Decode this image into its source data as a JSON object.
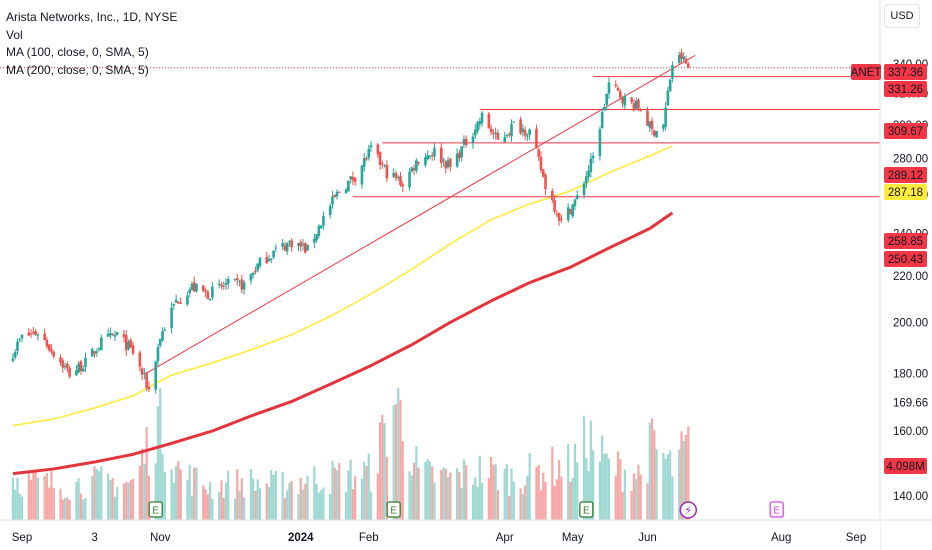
{
  "header": {
    "title": "Arista Networks, Inc., 1D, NYSE",
    "indicators": [
      "Vol",
      "MA (100, close, 0, SMA, 5)",
      "MA (200, close, 0, SMA, 5)"
    ],
    "currency": "USD"
  },
  "chart_data": {
    "type": "candlestick",
    "ticker": "ANET",
    "y_axis": {
      "ticks": [
        140.0,
        160.0,
        169.66,
        180.0,
        200.0,
        220.0,
        240.0,
        260.0,
        280.0,
        300.0,
        320.0,
        340.0
      ],
      "tick_labels": [
        "140.00",
        "160.00",
        "169.66",
        "180.00",
        "200.00",
        "220.00",
        "240.00",
        "260.00",
        "280.00",
        "300.00",
        "320.00",
        "340.00"
      ],
      "scale": "log"
    },
    "x_axis": {
      "tick_labels": [
        {
          "label": "Sep",
          "date": "2023-09-01"
        },
        {
          "label": "3",
          "date": "2023-10-03"
        },
        {
          "label": "Nov",
          "date": "2023-11-01"
        },
        {
          "label": "2024",
          "date": "2024-01-02",
          "bold": true
        },
        {
          "label": "Feb",
          "date": "2024-02-01"
        },
        {
          "label": "Apr",
          "date": "2024-04-01"
        },
        {
          "label": "May",
          "date": "2024-05-01"
        },
        {
          "label": "Jun",
          "date": "2024-06-03"
        },
        {
          "label": "Aug",
          "date": "2024-08-01"
        },
        {
          "label": "Sep",
          "date": "2024-09-03"
        }
      ]
    },
    "price_labels": [
      {
        "text": "ANET",
        "value": 337.36,
        "color": "#f23645"
      },
      {
        "text": "337.36",
        "value": 337.36,
        "color": "#f23645"
      },
      {
        "text": "331.26",
        "value": 331.26,
        "color": "#f23645"
      },
      {
        "text": "309.67",
        "value": 309.67,
        "color": "#f23645"
      },
      {
        "text": "289.12",
        "value": 289.12,
        "color": "#f23645"
      },
      {
        "text": "287.18",
        "value": 287.18,
        "color": "#ffeb3b"
      },
      {
        "text": "258.85",
        "value": 258.85,
        "color": "#f23645"
      },
      {
        "text": "250.43",
        "value": 250.43,
        "color": "#f23645"
      },
      {
        "text": "4.098M",
        "value": null,
        "color": "#f23645"
      }
    ],
    "horizontal_levels": [
      {
        "value": 331.26,
        "from": "2024-05-10"
      },
      {
        "value": 309.67,
        "from": "2024-03-21"
      },
      {
        "value": 289.12,
        "from": "2024-02-07"
      },
      {
        "value": 258.85,
        "from": "2024-01-25"
      }
    ],
    "trendline": {
      "from": {
        "date": "2023-10-26",
        "value": 180.2
      },
      "to": {
        "date": "2024-06-24",
        "value": 346.0
      }
    },
    "ma100": [
      [
        "2023-08-28",
        161.8
      ],
      [
        "2023-09-15",
        164.0
      ],
      [
        "2023-10-02",
        167.5
      ],
      [
        "2023-10-20",
        172.0
      ],
      [
        "2023-11-06",
        179.5
      ],
      [
        "2023-11-24",
        184.0
      ],
      [
        "2023-12-11",
        189.0
      ],
      [
        "2023-12-29",
        195.0
      ],
      [
        "2024-01-16",
        203.0
      ],
      [
        "2024-02-02",
        212.0
      ],
      [
        "2024-02-20",
        223.0
      ],
      [
        "2024-03-08",
        235.0
      ],
      [
        "2024-03-26",
        247.0
      ],
      [
        "2024-04-12",
        255.0
      ],
      [
        "2024-04-30",
        262.0
      ],
      [
        "2024-05-17",
        272.0
      ],
      [
        "2024-06-04",
        281.5
      ],
      [
        "2024-06-14",
        287.18
      ]
    ],
    "ma200": [
      [
        "2023-08-28",
        146.6
      ],
      [
        "2023-09-15",
        148.0
      ],
      [
        "2023-10-02",
        150.0
      ],
      [
        "2023-10-20",
        152.5
      ],
      [
        "2023-11-06",
        156.0
      ],
      [
        "2023-11-24",
        160.0
      ],
      [
        "2023-12-11",
        165.0
      ],
      [
        "2023-12-29",
        170.0
      ],
      [
        "2024-01-16",
        176.5
      ],
      [
        "2024-02-02",
        183.0
      ],
      [
        "2024-02-20",
        191.0
      ],
      [
        "2024-03-08",
        200.0
      ],
      [
        "2024-03-26",
        209.0
      ],
      [
        "2024-04-12",
        217.0
      ],
      [
        "2024-04-30",
        224.0
      ],
      [
        "2024-05-17",
        233.0
      ],
      [
        "2024-06-04",
        242.5
      ],
      [
        "2024-06-14",
        250.43
      ]
    ],
    "price_keypoints": [
      [
        "2023-08-28",
        188
      ],
      [
        "2023-09-01",
        194
      ],
      [
        "2023-09-08",
        196
      ],
      [
        "2023-09-15",
        188
      ],
      [
        "2023-09-22",
        180
      ],
      [
        "2023-09-29",
        184
      ],
      [
        "2023-10-06",
        192
      ],
      [
        "2023-10-13",
        195
      ],
      [
        "2023-10-20",
        188
      ],
      [
        "2023-10-27",
        174
      ],
      [
        "2023-11-01",
        194
      ],
      [
        "2023-11-08",
        209
      ],
      [
        "2023-11-15",
        215
      ],
      [
        "2023-11-22",
        212
      ],
      [
        "2023-11-30",
        216
      ],
      [
        "2023-12-08",
        216
      ],
      [
        "2023-12-15",
        226
      ],
      [
        "2023-12-22",
        232
      ],
      [
        "2023-12-29",
        236
      ],
      [
        "2024-01-05",
        232
      ],
      [
        "2024-01-12",
        248
      ],
      [
        "2024-01-19",
        262
      ],
      [
        "2024-01-26",
        270
      ],
      [
        "2024-02-02",
        285
      ],
      [
        "2024-02-09",
        272
      ],
      [
        "2024-02-16",
        266
      ],
      [
        "2024-02-23",
        280
      ],
      [
        "2024-03-01",
        284
      ],
      [
        "2024-03-08",
        275
      ],
      [
        "2024-03-15",
        290
      ],
      [
        "2024-03-22",
        305
      ],
      [
        "2024-03-29",
        290
      ],
      [
        "2024-04-05",
        300
      ],
      [
        "2024-04-12",
        296
      ],
      [
        "2024-04-19",
        265
      ],
      [
        "2024-04-26",
        246
      ],
      [
        "2024-05-03",
        258
      ],
      [
        "2024-05-10",
        280
      ],
      [
        "2024-05-17",
        326
      ],
      [
        "2024-05-24",
        316
      ],
      [
        "2024-05-31",
        310
      ],
      [
        "2024-06-05",
        296
      ],
      [
        "2024-06-10",
        300
      ],
      [
        "2024-06-14",
        340
      ],
      [
        "2024-06-18",
        345
      ],
      [
        "2024-06-21",
        337.36
      ]
    ],
    "volume_keypoints": [
      [
        "2023-08-28",
        2.4
      ],
      [
        "2023-09-08",
        2.1
      ],
      [
        "2023-09-22",
        2.0
      ],
      [
        "2023-10-06",
        2.2
      ],
      [
        "2023-10-20",
        2.1
      ],
      [
        "2023-10-31",
        5.5
      ],
      [
        "2023-11-10",
        2.6
      ],
      [
        "2023-11-24",
        1.9
      ],
      [
        "2023-12-08",
        2.2
      ],
      [
        "2023-12-22",
        2.0
      ],
      [
        "2024-01-05",
        2.3
      ],
      [
        "2024-01-19",
        2.5
      ],
      [
        "2024-02-02",
        2.7
      ],
      [
        "2024-02-13",
        6.7
      ],
      [
        "2024-02-23",
        2.6
      ],
      [
        "2024-03-08",
        2.4
      ],
      [
        "2024-03-22",
        2.8
      ],
      [
        "2024-04-05",
        2.4
      ],
      [
        "2024-04-19",
        2.9
      ],
      [
        "2024-05-01",
        3.1
      ],
      [
        "2024-05-08",
        4.5
      ],
      [
        "2024-05-17",
        3.0
      ],
      [
        "2024-05-31",
        2.6
      ],
      [
        "2024-06-05",
        4.2
      ],
      [
        "2024-06-14",
        2.9
      ],
      [
        "2024-06-21",
        4.098
      ]
    ],
    "event_markers": [
      {
        "symbol": "E",
        "date": "2023-10-30",
        "type": "earnings"
      },
      {
        "symbol": "E",
        "date": "2024-02-12",
        "type": "earnings"
      },
      {
        "symbol": "E",
        "date": "2024-05-07",
        "type": "earnings"
      },
      {
        "symbol": "⚡",
        "date": "2024-06-21",
        "type": "split"
      },
      {
        "symbol": "E",
        "date": "2024-07-30",
        "type": "earnings-upcoming"
      }
    ],
    "colors": {
      "up": "#26a69a",
      "down": "#ef5350",
      "ma100": "#ffeb3b",
      "ma200": "#e5333c",
      "level": "#f23645"
    }
  }
}
